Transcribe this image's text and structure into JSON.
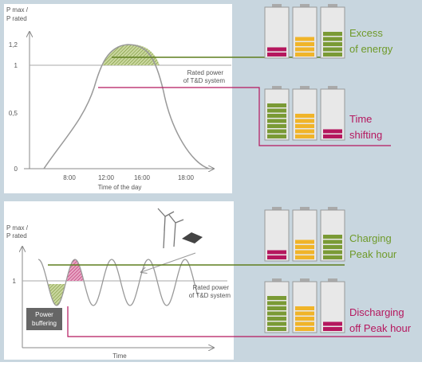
{
  "top_chart": {
    "y_axis_label": [
      "P max /",
      "P rated"
    ],
    "y_ticks": [
      "1,2",
      "1",
      "0,5",
      "0"
    ],
    "x_ticks": [
      "8:00",
      "12:00",
      "16:00",
      "18:00"
    ],
    "x_axis_label": "Time of the day",
    "rated_power_label": [
      "Rated power",
      "of T&D system"
    ]
  },
  "bottom_chart": {
    "y_axis_label": [
      "P max /",
      "P rated"
    ],
    "y_ticks": [
      "1"
    ],
    "x_axis_label": "Time",
    "rated_power_label": [
      "Rated power",
      "of T&D system"
    ],
    "power_buffering_label": [
      "Power",
      "buffering"
    ]
  },
  "callouts": [
    {
      "label": [
        "Excess",
        "of energy"
      ]
    },
    {
      "label": [
        "Time",
        "shifting"
      ]
    },
    {
      "label": [
        "Charging",
        "Peak hour"
      ]
    },
    {
      "label": [
        "Discharging",
        "off Peak hour"
      ]
    }
  ]
}
